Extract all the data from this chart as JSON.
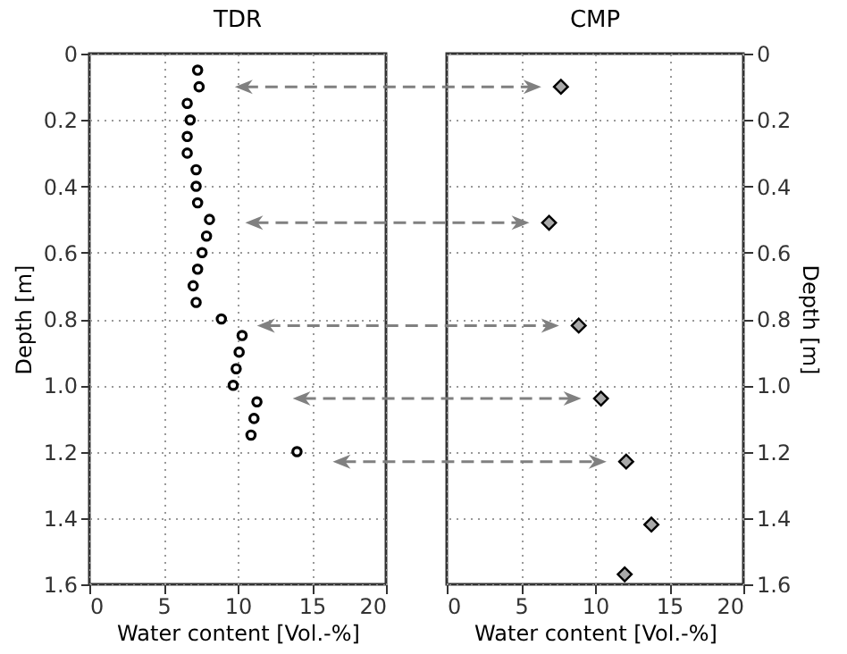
{
  "chart_data": [
    {
      "type": "scatter",
      "title": "TDR",
      "xlabel": "Water content [Vol.-%]",
      "ylabel": "Depth [m]",
      "marker": "circle",
      "grid": true,
      "xlim": [
        0,
        20
      ],
      "xticks": [
        0,
        5,
        10,
        15,
        20
      ],
      "ylim": [
        1.6,
        0
      ],
      "yticks": [
        0,
        0.2,
        0.4,
        0.6,
        0.8,
        {
          "value": 1,
          "label": "1.0"
        },
        1.2,
        1.4,
        1.6
      ],
      "series": [
        {
          "color": "#000000",
          "x": [
            7.3,
            7.4,
            6.6,
            6.8,
            6.6,
            6.6,
            7.2,
            7.2,
            7.3,
            8.1,
            7.9,
            7.6,
            7.3,
            7.0,
            7.2,
            8.9,
            10.3,
            10.1,
            9.9,
            9.7,
            11.3,
            11.1,
            10.9,
            14.0
          ],
          "values": [
            0.05,
            0.1,
            0.15,
            0.2,
            0.25,
            0.3,
            0.35,
            0.4,
            0.45,
            0.5,
            0.55,
            0.6,
            0.65,
            0.7,
            0.75,
            0.8,
            0.85,
            0.9,
            0.95,
            1.0,
            1.05,
            1.1,
            1.15,
            1.2
          ]
        }
      ]
    },
    {
      "type": "scatter",
      "title": "CMP",
      "xlabel": "Water content [Vol.-%]",
      "ylabel": "Depth [m]",
      "marker": "diamond",
      "grid": true,
      "xlim": [
        0,
        20
      ],
      "xticks": [
        0,
        5,
        10,
        15,
        20
      ],
      "ylim": [
        1.6,
        0
      ],
      "yticks": [
        0,
        0.2,
        0.4,
        0.6,
        0.8,
        {
          "value": 1,
          "label": "1.0"
        },
        1.2,
        1.4,
        1.6
      ],
      "series": [
        {
          "color": "#a9a9a9",
          "x": [
            7.7,
            6.9,
            8.9,
            10.4,
            12.1,
            13.8,
            12.0
          ],
          "values": [
            0.1,
            0.51,
            0.82,
            1.04,
            1.23,
            1.42,
            1.57
          ]
        }
      ]
    }
  ]
}
